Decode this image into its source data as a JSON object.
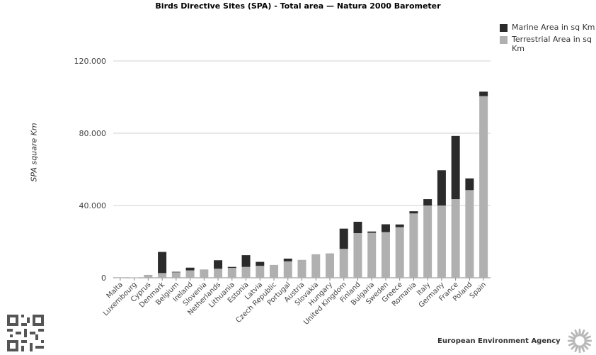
{
  "chart_data": {
    "type": "bar",
    "stacked": true,
    "title": "Birds Directive Sites (SPA) - Total area — Natura 2000 Barometer",
    "xlabel": "",
    "ylabel": "SPA square Km",
    "ylim": [
      0,
      140000
    ],
    "yticks": [
      {
        "value": 0,
        "label": "0"
      },
      {
        "value": 40000,
        "label": "40.000"
      },
      {
        "value": 80000,
        "label": "80.000"
      },
      {
        "value": 120000,
        "label": "120.000"
      }
    ],
    "legend_position": "top-right",
    "categories": [
      "Malta",
      "Luxembourg",
      "Cyprus",
      "Denmark",
      "Belgium",
      "Ireland",
      "Slovenia",
      "Netherlands",
      "Lithuania",
      "Estonia",
      "Latvia",
      "Czech Republic",
      "Portugal",
      "Austria",
      "Slovakia",
      "Hungary",
      "United Kingdom",
      "Finland",
      "Bulgaria",
      "Sweden",
      "Greece",
      "Romania",
      "Italy",
      "Germany",
      "France",
      "Poland",
      "Spain"
    ],
    "series": [
      {
        "name": "Terrestrial Area in sq Km",
        "color": "#b0b0b0",
        "values": [
          13,
          160,
          1600,
          2600,
          3000,
          4100,
          4600,
          5000,
          5500,
          6000,
          6600,
          7100,
          9100,
          9900,
          13000,
          13500,
          16000,
          24700,
          24900,
          25300,
          28000,
          35600,
          40000,
          40000,
          43500,
          48500,
          100500
        ]
      },
      {
        "name": "Marine Area in sq Km",
        "color": "#2b2b2b",
        "values": [
          0,
          0,
          0,
          11700,
          300,
          1500,
          0,
          4700,
          500,
          6500,
          2200,
          0,
          1500,
          0,
          0,
          0,
          11200,
          6300,
          700,
          4300,
          1500,
          1200,
          3500,
          19500,
          35000,
          6500,
          2500
        ]
      }
    ]
  },
  "footer": {
    "agency": "European Environment Agency"
  },
  "icons": {
    "qr": "qr-code-icon",
    "logo": "eea-logo-icon"
  }
}
